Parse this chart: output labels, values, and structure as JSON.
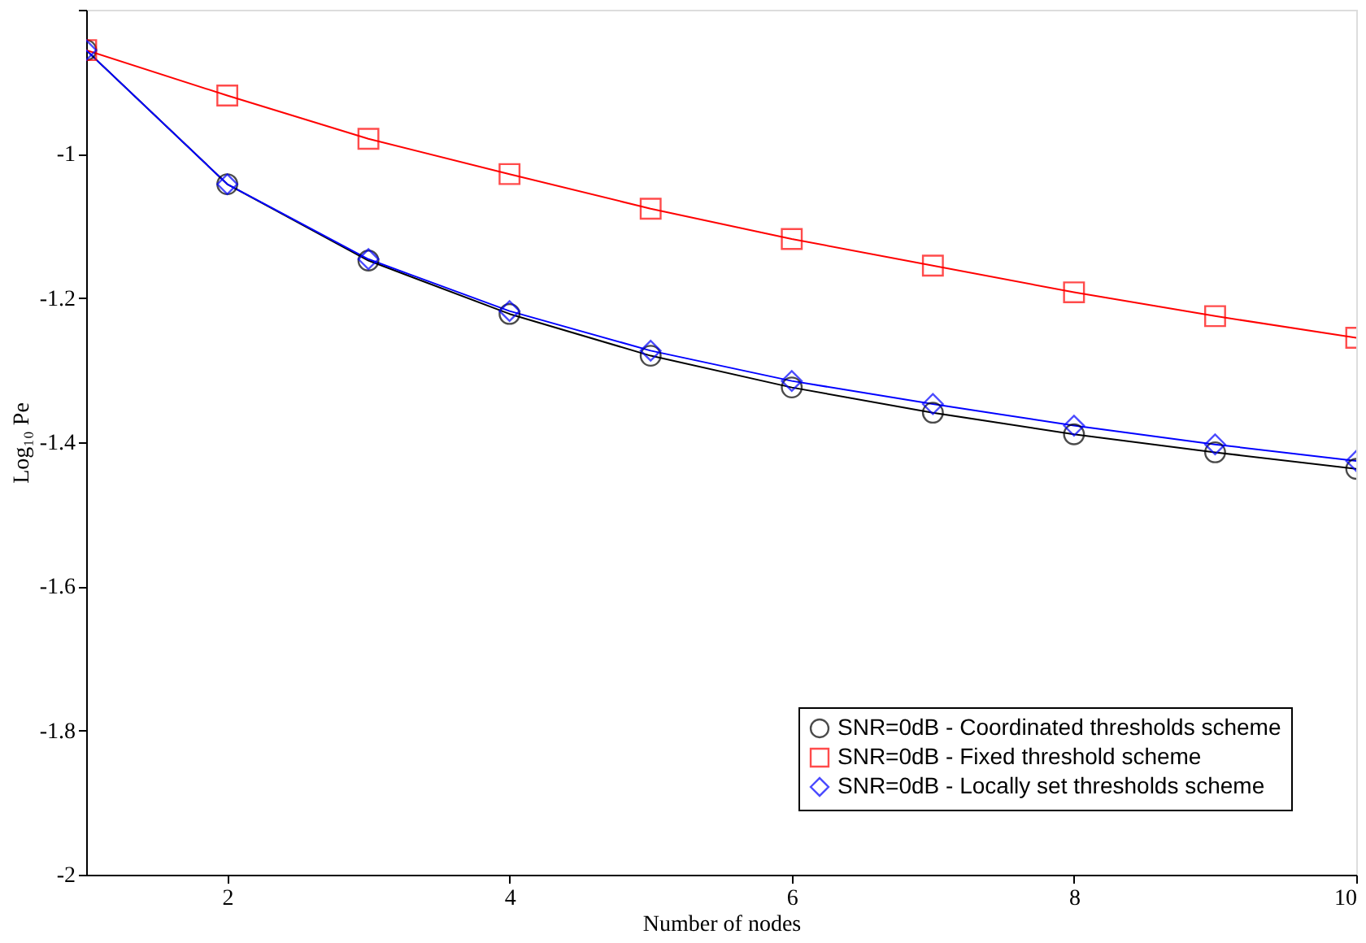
{
  "chart_data": {
    "type": "line",
    "xlabel": "Number of nodes",
    "ylabel": "Log₁₀ Pe",
    "x": [
      1,
      2,
      3,
      4,
      5,
      6,
      7,
      8,
      9,
      10
    ],
    "xlim": [
      1,
      10
    ],
    "xticks": [
      2,
      4,
      6,
      8,
      10
    ],
    "ylim": [
      -2,
      -0.8
    ],
    "yticks": [
      -2,
      -1.8,
      -1.6,
      -1.4,
      -1.2,
      -1,
      {
        "value": -0.8,
        "label": null
      }
    ],
    "grid": false,
    "legend": "bottom right",
    "line_style": "solid",
    "series": [
      {
        "name": "SNR=0dB - Coordinated thresholds scheme",
        "color": "#000000",
        "marker": "circle",
        "values": [
          -0.856,
          -1.042,
          -1.148,
          -1.222,
          -1.28,
          -1.324,
          -1.359,
          -1.389,
          -1.414,
          -1.437
        ]
      },
      {
        "name": "SNR=0dB - Fixed threshold scheme",
        "color": "#ff0000",
        "marker": "square",
        "values": [
          -0.856,
          -0.919,
          -0.979,
          -1.028,
          -1.076,
          -1.118,
          -1.155,
          -1.192,
          -1.225,
          -1.255
        ]
      },
      {
        "name": "SNR=0dB - Locally set thresholds scheme",
        "color": "#0000ff",
        "marker": "diamond",
        "values": [
          -0.856,
          -1.042,
          -1.146,
          -1.218,
          -1.273,
          -1.315,
          -1.347,
          -1.377,
          -1.403,
          -1.426
        ]
      }
    ]
  }
}
